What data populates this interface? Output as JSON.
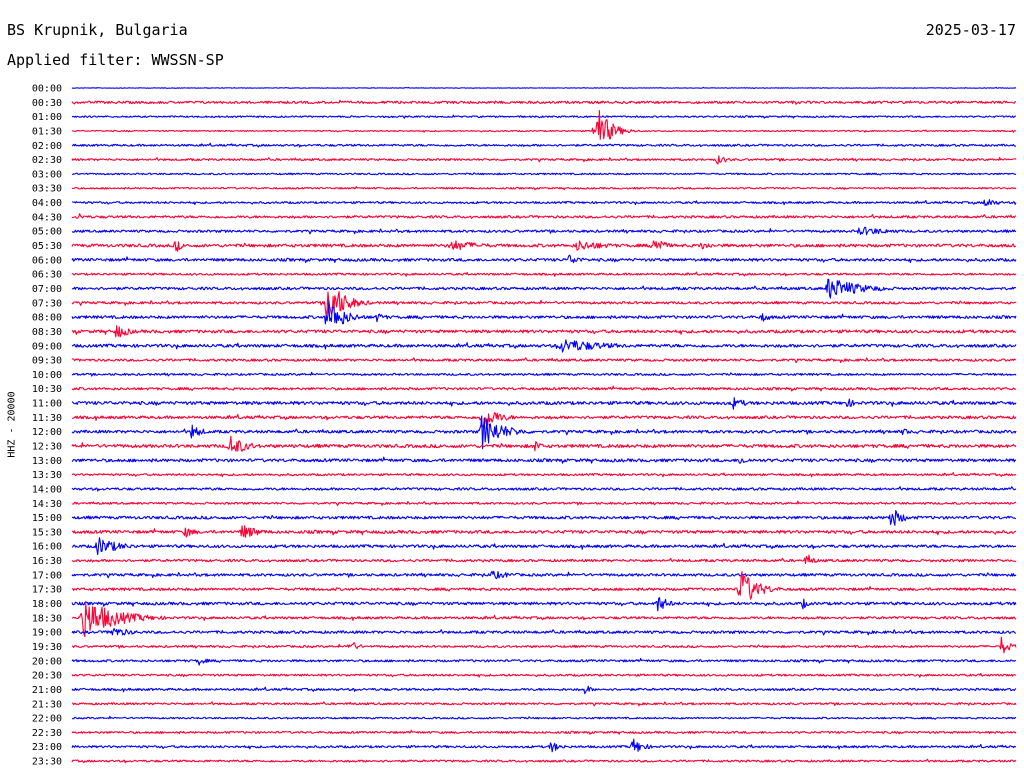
{
  "header": {
    "station": "BS Krupnik, Bulgaria",
    "date": "2025-03-17",
    "filter": "Applied filter: WWSSN-SP"
  },
  "chart_data": {
    "type": "line",
    "title": "BS Krupnik, Bulgaria",
    "ylabel": "HHZ - 20000",
    "colors": [
      "#0000ff",
      "#ff0033"
    ],
    "color_rule": "alternating by trace, starting blue at 00:00",
    "trace_labels": [
      "00:00",
      "00:30",
      "01:00",
      "01:30",
      "02:00",
      "02:30",
      "03:00",
      "03:30",
      "04:00",
      "04:30",
      "05:00",
      "05:30",
      "06:00",
      "06:30",
      "07:00",
      "07:30",
      "08:00",
      "08:30",
      "09:00",
      "09:30",
      "10:00",
      "10:30",
      "11:00",
      "11:30",
      "12:00",
      "12:30",
      "13:00",
      "13:30",
      "14:00",
      "14:30",
      "15:00",
      "15:30",
      "16:00",
      "16:30",
      "17:00",
      "17:30",
      "18:00",
      "18:30",
      "19:00",
      "19:30",
      "20:00",
      "20:30",
      "21:00",
      "21:30",
      "22:00",
      "22:30",
      "23:00",
      "23:30"
    ],
    "trace_minutes": 30,
    "noise_level": [
      0.3,
      1.2,
      0.8,
      0.6,
      1.0,
      1.0,
      0.8,
      0.8,
      1.0,
      1.2,
      1.2,
      1.5,
      1.4,
      1.0,
      1.3,
      1.2,
      1.4,
      1.5,
      1.5,
      1.2,
      1.0,
      1.2,
      1.6,
      1.4,
      1.4,
      1.6,
      1.5,
      1.0,
      1.2,
      1.0,
      1.4,
      1.5,
      1.4,
      1.2,
      1.3,
      1.3,
      1.4,
      1.2,
      1.3,
      1.0,
      1.1,
      1.0,
      1.1,
      1.0,
      0.8,
      1.0,
      1.1,
      1.0
    ],
    "events": [
      {
        "trace": "01:30",
        "minute": 16.6,
        "amplitude": 30,
        "duration_min": 1.2
      },
      {
        "trace": "02:30",
        "minute": 20.5,
        "amplitude": 5,
        "duration_min": 1.0
      },
      {
        "trace": "04:00",
        "minute": 29.0,
        "amplitude": 6,
        "duration_min": 1.0
      },
      {
        "trace": "04:30",
        "minute": 0.2,
        "amplitude": 5,
        "duration_min": 0.5
      },
      {
        "trace": "05:00",
        "minute": 25.0,
        "amplitude": 5,
        "duration_min": 3.0
      },
      {
        "trace": "05:30",
        "minute": 3.3,
        "amplitude": 8,
        "duration_min": 0.5
      },
      {
        "trace": "05:30",
        "minute": 12.0,
        "amplitude": 6,
        "duration_min": 3.0
      },
      {
        "trace": "05:30",
        "minute": 16.0,
        "amplitude": 6,
        "duration_min": 3.0
      },
      {
        "trace": "05:30",
        "minute": 18.5,
        "amplitude": 12,
        "duration_min": 0.8
      },
      {
        "trace": "05:30",
        "minute": 20.0,
        "amplitude": 5,
        "duration_min": 1.0
      },
      {
        "trace": "06:00",
        "minute": 15.8,
        "amplitude": 6,
        "duration_min": 1.0
      },
      {
        "trace": "07:00",
        "minute": 24.0,
        "amplitude": 12,
        "duration_min": 3.0
      },
      {
        "trace": "07:30",
        "minute": 8.1,
        "amplitude": 26,
        "duration_min": 1.5
      },
      {
        "trace": "08:00",
        "minute": 8.1,
        "amplitude": 20,
        "duration_min": 1.5
      },
      {
        "trace": "08:00",
        "minute": 9.6,
        "amplitude": 6,
        "duration_min": 1.0
      },
      {
        "trace": "08:00",
        "minute": 21.9,
        "amplitude": 5,
        "duration_min": 1.0
      },
      {
        "trace": "08:30",
        "minute": 1.4,
        "amplitude": 8,
        "duration_min": 1.2
      },
      {
        "trace": "09:00",
        "minute": 15.5,
        "amplitude": 8,
        "duration_min": 4.0
      },
      {
        "trace": "11:00",
        "minute": 21.0,
        "amplitude": 6,
        "duration_min": 1.2
      },
      {
        "trace": "11:00",
        "minute": 24.6,
        "amplitude": 5,
        "duration_min": 1.0
      },
      {
        "trace": "11:30",
        "minute": 13.0,
        "amplitude": 14,
        "duration_min": 1.5
      },
      {
        "trace": "12:00",
        "minute": 3.8,
        "amplitude": 8,
        "duration_min": 1.0
      },
      {
        "trace": "12:00",
        "minute": 13.0,
        "amplitude": 18,
        "duration_min": 2.0
      },
      {
        "trace": "12:00",
        "minute": 26.4,
        "amplitude": 5,
        "duration_min": 0.5
      },
      {
        "trace": "12:30",
        "minute": 5.0,
        "amplitude": 12,
        "duration_min": 1.5
      },
      {
        "trace": "12:30",
        "minute": 14.7,
        "amplitude": 8,
        "duration_min": 0.5
      },
      {
        "trace": "13:00",
        "minute": 21.2,
        "amplitude": 5,
        "duration_min": 1.0
      },
      {
        "trace": "15:00",
        "minute": 26.0,
        "amplitude": 12,
        "duration_min": 1.0
      },
      {
        "trace": "15:30",
        "minute": 3.6,
        "amplitude": 6,
        "duration_min": 1.0
      },
      {
        "trace": "15:30",
        "minute": 5.4,
        "amplitude": 8,
        "duration_min": 1.5
      },
      {
        "trace": "16:00",
        "minute": 0.8,
        "amplitude": 10,
        "duration_min": 2.0
      },
      {
        "trace": "16:30",
        "minute": 23.3,
        "amplitude": 5,
        "duration_min": 1.0
      },
      {
        "trace": "17:00",
        "minute": 13.3,
        "amplitude": 5,
        "duration_min": 2.0
      },
      {
        "trace": "17:30",
        "minute": 21.2,
        "amplitude": 22,
        "duration_min": 1.5
      },
      {
        "trace": "18:00",
        "minute": 18.6,
        "amplitude": 9,
        "duration_min": 1.0
      },
      {
        "trace": "18:00",
        "minute": 23.2,
        "amplitude": 6,
        "duration_min": 0.5
      },
      {
        "trace": "18:30",
        "minute": 0.3,
        "amplitude": 22,
        "duration_min": 3.0
      },
      {
        "trace": "19:00",
        "minute": 1.2,
        "amplitude": 6,
        "duration_min": 2.0
      },
      {
        "trace": "19:30",
        "minute": 8.8,
        "amplitude": 7,
        "duration_min": 0.8
      },
      {
        "trace": "19:30",
        "minute": 29.5,
        "amplitude": 10,
        "duration_min": 0.8
      },
      {
        "trace": "20:00",
        "minute": 4.0,
        "amplitude": 5,
        "duration_min": 0.8
      },
      {
        "trace": "21:00",
        "minute": 16.3,
        "amplitude": 6,
        "duration_min": 0.5
      },
      {
        "trace": "23:00",
        "minute": 15.2,
        "amplitude": 6,
        "duration_min": 1.0
      },
      {
        "trace": "23:00",
        "minute": 17.8,
        "amplitude": 9,
        "duration_min": 1.0
      }
    ]
  }
}
